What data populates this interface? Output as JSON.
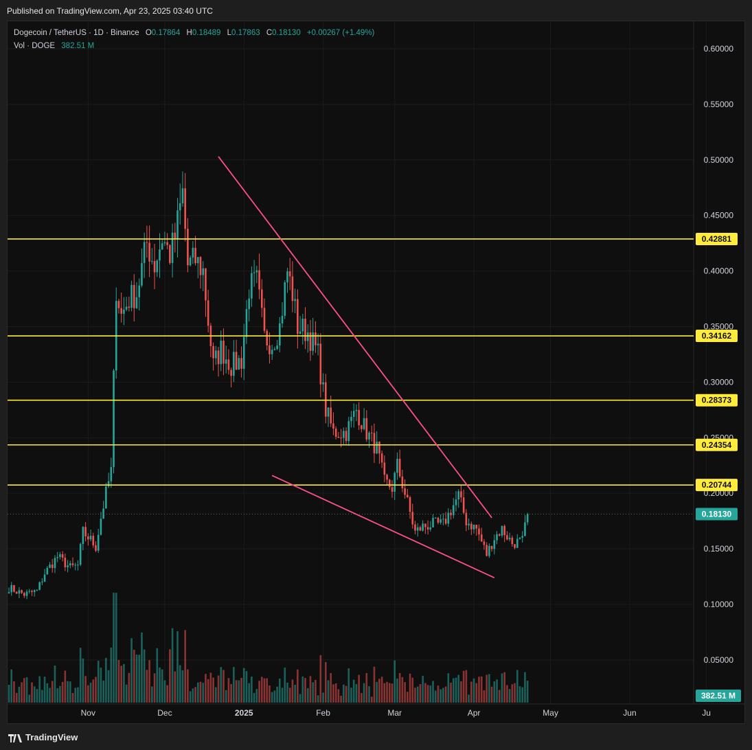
{
  "header": {
    "published": "Published on TradingView.com, Apr 23, 2025 03:40 UTC"
  },
  "legend": {
    "symbol": "Dogecoin / TetherUS · 1D · Binance",
    "open_label": "O",
    "open": "0.17864",
    "high_label": "H",
    "high": "0.18489",
    "low_label": "L",
    "low": "0.17863",
    "close_label": "C",
    "close": "0.18130",
    "change": "+0.00267 (+1.49%)",
    "vol_label": "Vol · DOGE",
    "vol": "382.51 M"
  },
  "footer": {
    "brand": "TradingView"
  },
  "colors": {
    "up": "#26a69a",
    "down": "#ef5350",
    "level": "#ffeb3b",
    "trendline": "#ff4f8b",
    "price_tag": "#26a69a"
  },
  "chart_data": {
    "type": "candlestick",
    "x_tick_labels": [
      "Nov",
      "Dec",
      "2025",
      "Feb",
      "Mar",
      "Apr",
      "May",
      "Jun",
      "Ju"
    ],
    "y_tick_labels": [
      "0.60000",
      "0.55000",
      "0.50000",
      "0.45000",
      "0.40000",
      "0.35000",
      "0.30000",
      "0.25000",
      "0.20000",
      "0.15000",
      "0.10000",
      "0.05000"
    ],
    "ylim": [
      0.0,
      0.63
    ],
    "horizontal_levels": [
      "0.42881",
      "0.34162",
      "0.28373",
      "0.24354",
      "0.20744"
    ],
    "last_price": "0.18130",
    "volume_tag": "382.51 M",
    "trendlines": [
      {
        "name": "upper-resistance",
        "from": [
          "2024-12-22",
          0.503
        ],
        "to": [
          "2025-04-08",
          0.178
        ]
      },
      {
        "name": "lower-support",
        "from": [
          "2025-01-12",
          0.216
        ],
        "to": [
          "2025-04-09",
          0.124
        ]
      }
    ],
    "anchors": [
      [
        "2024-10-01",
        0.115
      ],
      [
        "2024-10-07",
        0.109
      ],
      [
        "2024-10-12",
        0.112
      ],
      [
        "2024-10-15",
        0.128
      ],
      [
        "2024-10-20",
        0.143
      ],
      [
        "2024-10-25",
        0.133
      ],
      [
        "2024-10-28",
        0.135
      ],
      [
        "2024-10-30",
        0.165
      ],
      [
        "2024-11-02",
        0.158
      ],
      [
        "2024-11-04",
        0.152
      ],
      [
        "2024-11-06",
        0.178
      ],
      [
        "2024-11-08",
        0.2
      ],
      [
        "2024-11-10",
        0.22
      ],
      [
        "2024-11-12",
        0.385
      ],
      [
        "2024-11-14",
        0.36
      ],
      [
        "2024-11-17",
        0.375
      ],
      [
        "2024-11-20",
        0.38
      ],
      [
        "2024-11-24",
        0.425
      ],
      [
        "2024-11-27",
        0.405
      ],
      [
        "2024-11-30",
        0.43
      ],
      [
        "2024-12-03",
        0.415
      ],
      [
        "2024-12-05",
        0.43
      ],
      [
        "2024-12-08",
        0.47
      ],
      [
        "2024-12-10",
        0.405
      ],
      [
        "2024-12-13",
        0.41
      ],
      [
        "2024-12-16",
        0.4
      ],
      [
        "2024-12-18",
        0.355
      ],
      [
        "2024-12-20",
        0.315
      ],
      [
        "2024-12-23",
        0.33
      ],
      [
        "2024-12-27",
        0.315
      ],
      [
        "2024-12-31",
        0.32
      ],
      [
        "2025-01-03",
        0.385
      ],
      [
        "2025-01-06",
        0.39
      ],
      [
        "2025-01-09",
        0.34
      ],
      [
        "2025-01-12",
        0.335
      ],
      [
        "2025-01-15",
        0.35
      ],
      [
        "2025-01-18",
        0.4
      ],
      [
        "2025-01-20",
        0.38
      ],
      [
        "2025-01-22",
        0.35
      ],
      [
        "2025-01-26",
        0.345
      ],
      [
        "2025-01-30",
        0.325
      ],
      [
        "2025-02-02",
        0.275
      ],
      [
        "2025-02-05",
        0.255
      ],
      [
        "2025-02-10",
        0.255
      ],
      [
        "2025-02-14",
        0.275
      ],
      [
        "2025-02-18",
        0.255
      ],
      [
        "2025-02-22",
        0.24
      ],
      [
        "2025-02-25",
        0.21
      ],
      [
        "2025-02-28",
        0.205
      ],
      [
        "2025-03-02",
        0.225
      ],
      [
        "2025-03-05",
        0.2
      ],
      [
        "2025-03-09",
        0.165
      ],
      [
        "2025-03-12",
        0.17
      ],
      [
        "2025-03-16",
        0.172
      ],
      [
        "2025-03-20",
        0.172
      ],
      [
        "2025-03-23",
        0.185
      ],
      [
        "2025-03-26",
        0.198
      ],
      [
        "2025-03-29",
        0.175
      ],
      [
        "2025-04-02",
        0.168
      ],
      [
        "2025-04-06",
        0.145
      ],
      [
        "2025-04-09",
        0.16
      ],
      [
        "2025-04-12",
        0.168
      ],
      [
        "2025-04-16",
        0.155
      ],
      [
        "2025-04-20",
        0.157
      ],
      [
        "2025-04-22",
        0.181
      ]
    ]
  }
}
